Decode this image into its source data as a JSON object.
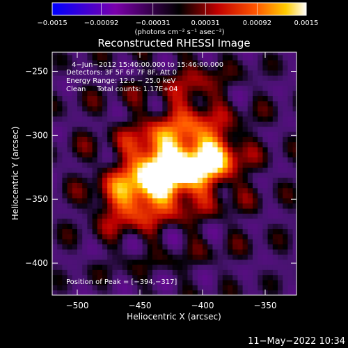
{
  "chart_data": {
    "type": "heatmap",
    "title": "Reconstructed RHESSI Image",
    "xlabel": "Heliocentric X (arcsec)",
    "ylabel": "Heliocentric Y (arcsec)",
    "xlim": [
      -520,
      -325
    ],
    "ylim": [
      -425,
      -235
    ],
    "x_ticks": [
      -500,
      -450,
      -400,
      -350
    ],
    "y_ticks": [
      -250,
      -300,
      -350,
      -400
    ],
    "x_tick_labels": [
      "−500",
      "−450",
      "−400",
      "−350"
    ],
    "y_tick_labels": [
      "−250",
      "−300",
      "−350",
      "−400"
    ],
    "colorbar": {
      "range": [
        -0.0015,
        0.0015
      ],
      "ticks": [
        -0.0015,
        -0.00092,
        -0.00031,
        0.00031,
        0.00092,
        0.0015
      ],
      "tick_labels": [
        "−0.0015",
        "−0.00092",
        "−0.00031",
        "0.00031",
        "0.00092",
        "0.0015"
      ],
      "unit_label": "(photons cm⁻² s⁻¹ asec⁻²)"
    },
    "annotations": [
      "4−Jun−2012 15:40:00.000 to 15:46:00.000",
      "Detectors: 3F 5F 6F 7F 8F, Att 0",
      "Energy Range: 12.0 − 25.0 keV",
      "Clean     Total counts: 1.17E+04"
    ],
    "peak_label": "Position of Peak = [−394,−317]",
    "peak_position": [
      -394,
      -317
    ],
    "grid": false,
    "source_components": [
      {
        "x": -394,
        "y": -317,
        "amplitude": 0.0015
      },
      {
        "x": -420,
        "y": -330,
        "amplitude": 0.0012
      },
      {
        "x": -440,
        "y": -338,
        "amplitude": 0.001
      },
      {
        "x": -462,
        "y": -350,
        "amplitude": 0.00085
      },
      {
        "x": -438,
        "y": -313,
        "amplitude": 0.00085
      },
      {
        "x": -415,
        "y": -290,
        "amplitude": 0.00045
      },
      {
        "x": -405,
        "y": -262,
        "amplitude": 0.00035
      }
    ]
  },
  "footer": {
    "timestamp": "11−May−2022 10:34"
  }
}
